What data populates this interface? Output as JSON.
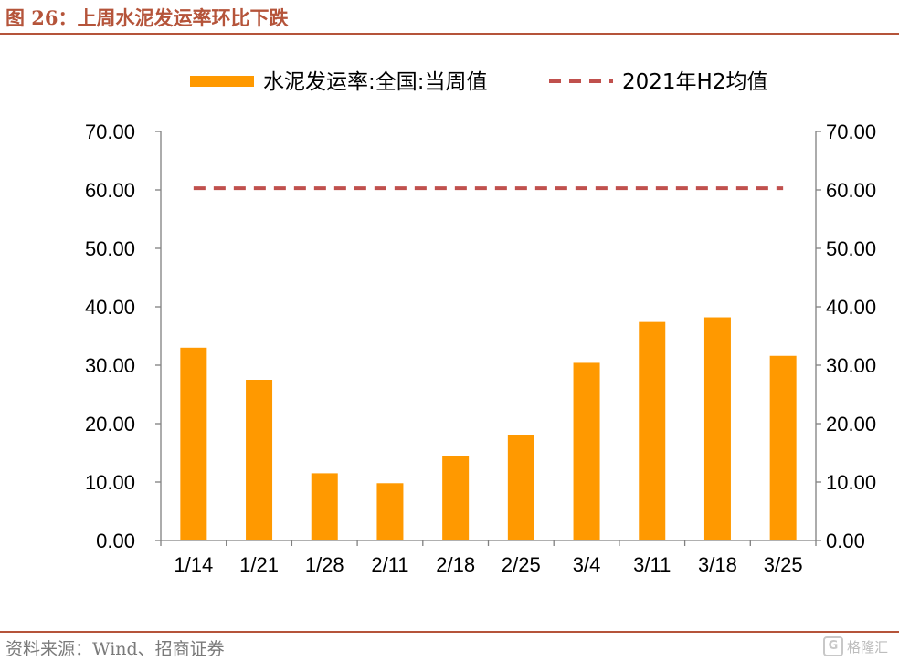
{
  "header": {
    "title": "图 26：上周水泥发运率环比下跌"
  },
  "footer": {
    "source": "资料来源：Wind、招商证券",
    "watermark_icon": "G",
    "watermark_text": "格隆汇"
  },
  "colors": {
    "bar": "#FF9900",
    "reference_line": "#C0504D",
    "title": "#B5543A"
  },
  "chart_data": {
    "type": "bar",
    "categories": [
      "1/14",
      "1/21",
      "1/28",
      "2/11",
      "2/18",
      "2/25",
      "3/4",
      "3/11",
      "3/18",
      "3/25"
    ],
    "series": [
      {
        "name": "水泥发运率:全国:当周值",
        "type": "bar",
        "values": [
          33.0,
          27.5,
          11.5,
          9.8,
          14.5,
          18.0,
          30.4,
          37.4,
          38.2,
          31.6
        ]
      },
      {
        "name": "2021年H2均值",
        "type": "line",
        "style": "dashed",
        "values": [
          60.3,
          60.3,
          60.3,
          60.3,
          60.3,
          60.3,
          60.3,
          60.3,
          60.3,
          60.3
        ]
      }
    ],
    "ylim": [
      0,
      70
    ],
    "yticks": [
      "0.00",
      "10.00",
      "20.00",
      "30.00",
      "40.00",
      "50.00",
      "60.00",
      "70.00"
    ],
    "y2ticks": [
      "0.00",
      "10.00",
      "20.00",
      "30.00",
      "40.00",
      "50.00",
      "60.00",
      "70.00"
    ],
    "legend_position": "top",
    "grid": false
  }
}
